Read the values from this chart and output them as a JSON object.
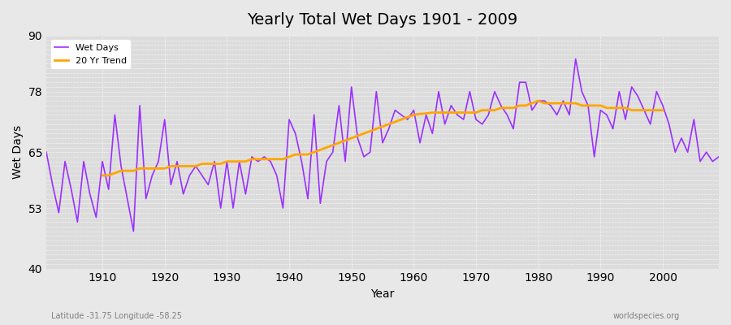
{
  "title": "Yearly Total Wet Days 1901 - 2009",
  "xlabel": "Year",
  "ylabel": "Wet Days",
  "subtitle": "Latitude -31.75 Longitude -58.25",
  "watermark": "worldspecies.org",
  "ylim": [
    40,
    90
  ],
  "yticks": [
    40,
    53,
    65,
    78,
    90
  ],
  "line_color": "#9B30FF",
  "trend_color": "#FFA500",
  "bg_color": "#E8E8E8",
  "plot_bg_color": "#DCDCDC",
  "years": [
    1901,
    1902,
    1903,
    1904,
    1905,
    1906,
    1907,
    1908,
    1909,
    1910,
    1911,
    1912,
    1913,
    1914,
    1915,
    1916,
    1917,
    1918,
    1919,
    1920,
    1921,
    1922,
    1923,
    1924,
    1925,
    1926,
    1927,
    1928,
    1929,
    1930,
    1931,
    1932,
    1933,
    1934,
    1935,
    1936,
    1937,
    1938,
    1939,
    1940,
    1941,
    1942,
    1943,
    1944,
    1945,
    1946,
    1947,
    1948,
    1949,
    1950,
    1951,
    1952,
    1953,
    1954,
    1955,
    1956,
    1957,
    1958,
    1959,
    1960,
    1961,
    1962,
    1963,
    1964,
    1965,
    1966,
    1967,
    1968,
    1969,
    1970,
    1971,
    1972,
    1973,
    1974,
    1975,
    1976,
    1977,
    1978,
    1979,
    1980,
    1981,
    1982,
    1983,
    1984,
    1985,
    1986,
    1987,
    1988,
    1989,
    1990,
    1991,
    1992,
    1993,
    1994,
    1995,
    1996,
    1997,
    1998,
    1999,
    2000,
    2001,
    2002,
    2003,
    2004,
    2005,
    2006,
    2007,
    2008,
    2009
  ],
  "wet_days": [
    65,
    58,
    52,
    63,
    57,
    50,
    63,
    56,
    51,
    63,
    57,
    73,
    62,
    55,
    48,
    75,
    55,
    60,
    63,
    72,
    58,
    63,
    56,
    60,
    62,
    60,
    58,
    63,
    53,
    63,
    53,
    63,
    56,
    64,
    63,
    64,
    63,
    60,
    53,
    72,
    69,
    63,
    55,
    73,
    54,
    63,
    65,
    75,
    63,
    79,
    68,
    64,
    65,
    78,
    67,
    70,
    74,
    73,
    72,
    74,
    67,
    73,
    69,
    78,
    71,
    75,
    73,
    72,
    78,
    72,
    71,
    73,
    78,
    75,
    73,
    70,
    80,
    80,
    74,
    76,
    76,
    75,
    73,
    76,
    73,
    85,
    78,
    75,
    64,
    74,
    73,
    70,
    78,
    72,
    79,
    77,
    74,
    71,
    78,
    75,
    71,
    65,
    68,
    65,
    72,
    63,
    65,
    63,
    64
  ],
  "trend_years": [
    1910,
    1911,
    1912,
    1913,
    1914,
    1915,
    1916,
    1917,
    1918,
    1919,
    1920,
    1921,
    1922,
    1923,
    1924,
    1925,
    1926,
    1927,
    1928,
    1929,
    1930,
    1931,
    1932,
    1933,
    1934,
    1935,
    1936,
    1937,
    1938,
    1939,
    1940,
    1941,
    1942,
    1943,
    1944,
    1945,
    1946,
    1947,
    1948,
    1949,
    1950,
    1951,
    1952,
    1953,
    1954,
    1955,
    1956,
    1957,
    1958,
    1959,
    1960,
    1961,
    1962,
    1963,
    1964,
    1965,
    1966,
    1967,
    1968,
    1969,
    1970,
    1971,
    1972,
    1973,
    1974,
    1975,
    1976,
    1977,
    1978,
    1979,
    1980,
    1981,
    1982,
    1983,
    1984,
    1985,
    1986,
    1987,
    1988,
    1989,
    1990,
    1991,
    1992,
    1993,
    1994,
    1995,
    1996,
    1997,
    1998,
    1999,
    2000
  ],
  "trend_values": [
    60,
    60,
    60.5,
    61,
    61,
    61,
    61.5,
    61.5,
    61.5,
    61.5,
    61.5,
    62,
    62,
    62,
    62,
    62,
    62.5,
    62.5,
    62.5,
    62.5,
    63,
    63,
    63,
    63,
    63.5,
    63.5,
    63.5,
    63.5,
    63.5,
    63.5,
    64,
    64.5,
    64.5,
    64.5,
    65,
    65.5,
    66,
    66.5,
    67,
    67.5,
    68,
    68.5,
    69,
    69.5,
    70,
    70.5,
    71,
    71.5,
    72,
    72.5,
    73,
    73.2,
    73.3,
    73.5,
    73.5,
    73.5,
    73.5,
    73.5,
    73.5,
    73.5,
    73.5,
    74,
    74,
    74,
    74.5,
    74.5,
    74.5,
    75,
    75,
    75.5,
    76,
    75.5,
    75.5,
    75.5,
    75.5,
    75.5,
    75.5,
    75,
    75,
    75,
    75,
    74.5,
    74.5,
    74.5,
    74.5,
    74,
    74,
    74,
    74,
    74,
    74
  ]
}
